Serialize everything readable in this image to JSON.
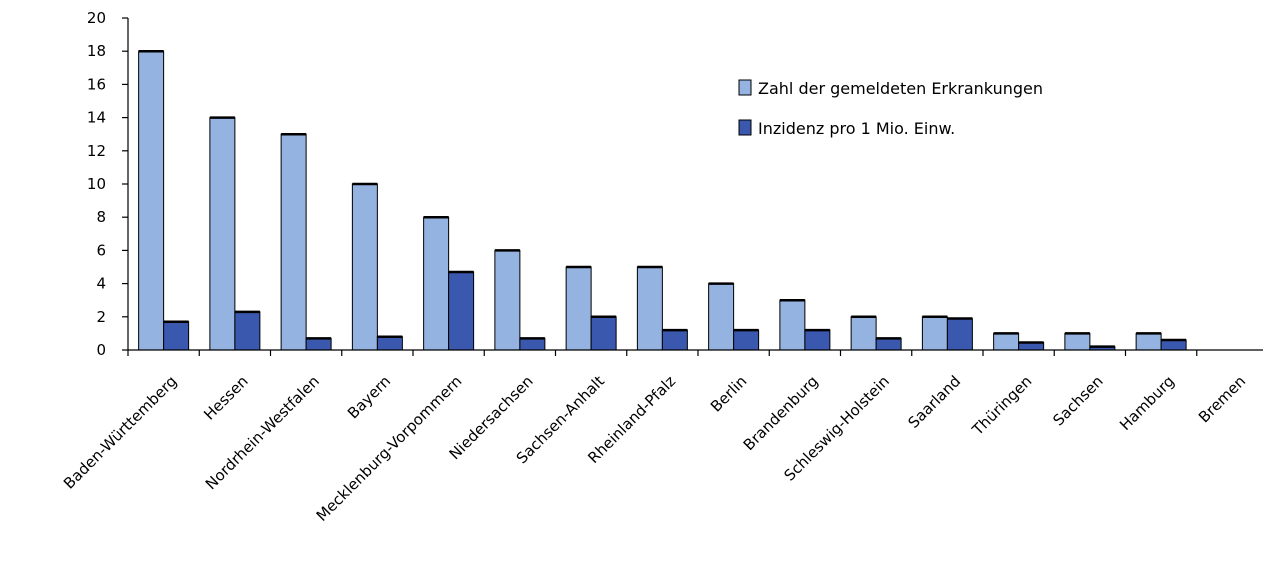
{
  "chart_data": {
    "type": "bar",
    "categories": [
      "Baden-Württemberg",
      "Hessen",
      "Nordrhein-Westfalen",
      "Bayern",
      "Mecklenburg-Vorpommern",
      "Niedersachsen",
      "Sachsen-Anhalt",
      "Rheinland-Pfalz",
      "Berlin",
      "Brandenburg",
      "Schleswig-Holstein",
      "Saarland",
      "Thüringen",
      "Sachsen",
      "Hamburg",
      "Bremen"
    ],
    "series": [
      {
        "name": "Zahl der gemeldeten Erkrankungen",
        "color": "#95b3e0",
        "values": [
          18,
          14,
          13,
          10,
          8,
          6,
          5,
          5,
          4,
          3,
          2,
          2,
          1,
          1,
          1,
          0
        ]
      },
      {
        "name": "Inzidenz pro 1 Mio. Einw.",
        "color": "#3a58ae",
        "values": [
          1.7,
          2.3,
          0.7,
          0.8,
          4.7,
          0.7,
          2.0,
          1.2,
          1.2,
          1.2,
          0.7,
          1.9,
          0.45,
          0.2,
          0.6,
          0
        ]
      }
    ],
    "yticks": [
      "0",
      "2",
      "4",
      "6",
      "8",
      "10",
      "12",
      "14",
      "16",
      "18",
      "20"
    ],
    "ylim": [
      0,
      20
    ],
    "grid": false,
    "legend_position": "top-right"
  }
}
